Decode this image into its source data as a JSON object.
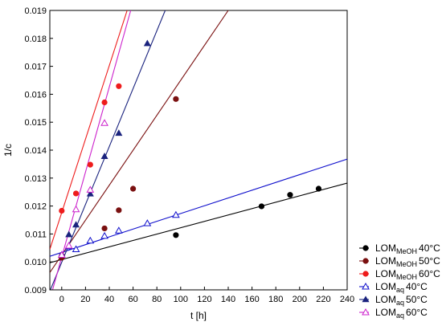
{
  "chart_data": {
    "type": "scatter",
    "xlabel": "t [h]",
    "ylabel": "1/c",
    "xlim": [
      -10,
      240
    ],
    "ylim": [
      0.009,
      0.019
    ],
    "x_ticks": [
      0,
      20,
      40,
      60,
      80,
      100,
      120,
      140,
      160,
      180,
      200,
      220,
      240
    ],
    "y_ticks": [
      "0.009",
      "0.010",
      "0.011",
      "0.012",
      "0.013",
      "0.014",
      "0.015",
      "0.016",
      "0.017",
      "0.018",
      "0.019"
    ],
    "grid": false,
    "legend_position": "bottom-right",
    "series": [
      {
        "label_base": "LOM",
        "label_sub": "MeOH",
        "label_temp": "40",
        "color": "#000000",
        "marker": "filled-circle",
        "points": [
          [
            0,
            0.01022
          ],
          [
            96,
            0.01096
          ],
          [
            168,
            0.01199
          ],
          [
            192,
            0.0124
          ],
          [
            216,
            0.01262
          ]
        ],
        "fit_line": [
          [
            -10,
            0.00997
          ],
          [
            240,
            0.01282
          ]
        ]
      },
      {
        "label_base": "LOM",
        "label_sub": "MeOH",
        "label_temp": "50",
        "color": "#7a1010",
        "marker": "filled-circle",
        "points": [
          [
            0,
            0.01015
          ],
          [
            36,
            0.0112
          ],
          [
            48,
            0.01185
          ],
          [
            60,
            0.01262
          ],
          [
            96,
            0.01583
          ]
        ],
        "fit_line": [
          [
            -10,
            0.00962
          ],
          [
            140,
            0.019
          ]
        ]
      },
      {
        "label_base": "LOM",
        "label_sub": "MeOH",
        "label_temp": "60",
        "color": "#ee1c1c",
        "marker": "filled-circle",
        "points": [
          [
            0,
            0.01183
          ],
          [
            12,
            0.01245
          ],
          [
            24,
            0.01348
          ],
          [
            36,
            0.01571
          ],
          [
            48,
            0.01629
          ]
        ],
        "fit_line": [
          [
            -10,
            0.01045
          ],
          [
            55,
            0.019
          ]
        ]
      },
      {
        "label_base": "LOM",
        "label_sub": "aq",
        "label_temp": "40",
        "color": "#1010cc",
        "marker": "open-triangle",
        "points": [
          [
            0,
            0.01025
          ],
          [
            6,
            0.01055
          ],
          [
            12,
            0.01045
          ],
          [
            24,
            0.01076
          ],
          [
            36,
            0.01093
          ],
          [
            48,
            0.01112
          ],
          [
            72,
            0.01138
          ],
          [
            96,
            0.01168
          ]
        ],
        "fit_line": [
          [
            -10,
            0.0102
          ],
          [
            240,
            0.01368
          ]
        ]
      },
      {
        "label_base": "LOM",
        "label_sub": "aq",
        "label_temp": "50",
        "color": "#1a237e",
        "marker": "filled-triangle",
        "points": [
          [
            6,
            0.01098
          ],
          [
            12,
            0.01133
          ],
          [
            24,
            0.01244
          ],
          [
            36,
            0.01378
          ],
          [
            48,
            0.01461
          ],
          [
            72,
            0.01782
          ]
        ],
        "fit_line": [
          [
            -10,
            0.00895
          ],
          [
            87,
            0.019
          ]
        ]
      },
      {
        "label_base": "LOM",
        "label_sub": "aq",
        "label_temp": "60",
        "color": "#cc22cc",
        "marker": "open-triangle",
        "points": [
          [
            0,
            0.01025
          ],
          [
            6,
            0.01058
          ],
          [
            12,
            0.01188
          ],
          [
            24,
            0.01258
          ],
          [
            36,
            0.01497
          ]
        ],
        "fit_line": [
          [
            -10,
            0.00865
          ],
          [
            58,
            0.019
          ]
        ]
      }
    ],
    "legend_unit": "°C"
  }
}
